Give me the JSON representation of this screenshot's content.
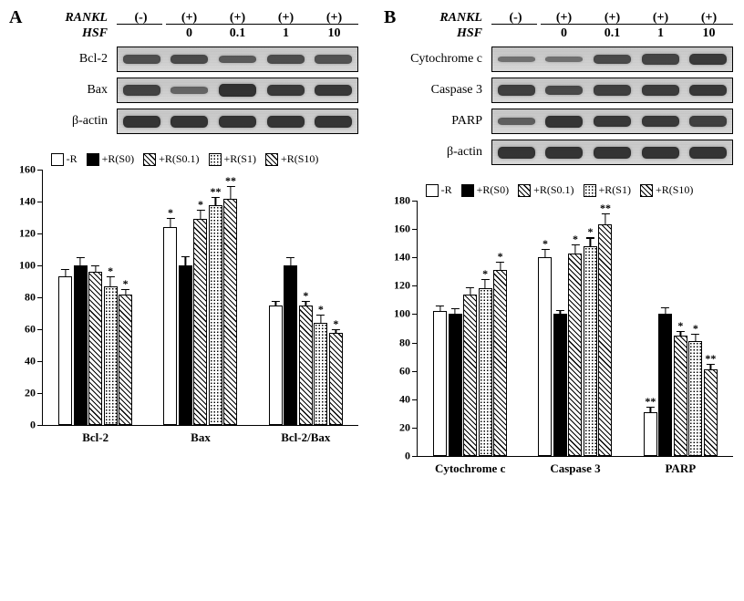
{
  "panelA": {
    "label": "A",
    "header": {
      "rankl_label": "RANKL",
      "hsf_label": "HSF",
      "rankl_values": [
        "(-)",
        "(+)",
        "(+)",
        "(+)",
        "(+)"
      ],
      "hsf_values": [
        "",
        "0",
        "0.1",
        "1",
        "10"
      ]
    },
    "blots": [
      {
        "name": "Bcl-2",
        "intensities": [
          0.5,
          0.55,
          0.4,
          0.52,
          0.48
        ]
      },
      {
        "name": "Bax",
        "intensities": [
          0.62,
          0.3,
          0.78,
          0.7,
          0.72
        ]
      },
      {
        "name": "β-actin",
        "intensities": [
          0.75,
          0.75,
          0.75,
          0.75,
          0.75
        ]
      }
    ],
    "chart": {
      "ymax": 160,
      "ytick_step": 20,
      "legend": [
        {
          "label": "-R",
          "fill": "fill-white"
        },
        {
          "label": "+R(S0)",
          "fill": "fill-black"
        },
        {
          "label": "+R(S0.1)",
          "fill": "fill-diag"
        },
        {
          "label": "+R(S1)",
          "fill": "fill-dots-s"
        },
        {
          "label": "+R(S10)",
          "fill": "fill-diag"
        }
      ],
      "groups": [
        {
          "name": "Bcl-2",
          "bars": [
            {
              "v": 93,
              "e": 5,
              "sig": "",
              "fill": "fill-white"
            },
            {
              "v": 100,
              "e": 5,
              "sig": "",
              "fill": "fill-black"
            },
            {
              "v": 96,
              "e": 4,
              "sig": "",
              "fill": "fill-diag"
            },
            {
              "v": 87,
              "e": 6,
              "sig": "*",
              "fill": "fill-dots-s"
            },
            {
              "v": 82,
              "e": 3,
              "sig": "*",
              "fill": "fill-diag"
            }
          ]
        },
        {
          "name": "Bax",
          "bars": [
            {
              "v": 124,
              "e": 6,
              "sig": "*",
              "fill": "fill-white"
            },
            {
              "v": 100,
              "e": 6,
              "sig": "",
              "fill": "fill-black"
            },
            {
              "v": 129,
              "e": 6,
              "sig": "*",
              "fill": "fill-diag"
            },
            {
              "v": 138,
              "e": 5,
              "sig": "**",
              "fill": "fill-dots-s"
            },
            {
              "v": 142,
              "e": 8,
              "sig": "**",
              "fill": "fill-diag"
            }
          ]
        },
        {
          "name": "Bcl-2/Bax",
          "bars": [
            {
              "v": 75,
              "e": 3,
              "sig": "",
              "fill": "fill-white"
            },
            {
              "v": 100,
              "e": 5,
              "sig": "",
              "fill": "fill-black"
            },
            {
              "v": 75,
              "e": 3,
              "sig": "*",
              "fill": "fill-diag"
            },
            {
              "v": 64,
              "e": 5,
              "sig": "*",
              "fill": "fill-dots-s"
            },
            {
              "v": 58,
              "e": 2,
              "sig": "*",
              "fill": "fill-diag"
            }
          ]
        }
      ]
    }
  },
  "panelB": {
    "label": "B",
    "header": {
      "rankl_label": "RANKL",
      "hsf_label": "HSF",
      "rankl_values": [
        "(-)",
        "(+)",
        "(+)",
        "(+)",
        "(+)"
      ],
      "hsf_values": [
        "",
        "0",
        "0.1",
        "1",
        "10"
      ]
    },
    "blots": [
      {
        "name": "Cytochrome  c",
        "intensities": [
          0.18,
          0.18,
          0.55,
          0.6,
          0.7
        ]
      },
      {
        "name": "Caspase 3",
        "intensities": [
          0.65,
          0.55,
          0.65,
          0.68,
          0.72
        ]
      },
      {
        "name": "PARP",
        "intensities": [
          0.35,
          0.75,
          0.72,
          0.7,
          0.65
        ]
      },
      {
        "name": "β-actin",
        "intensities": [
          0.75,
          0.75,
          0.75,
          0.75,
          0.75
        ]
      }
    ],
    "chart": {
      "ymax": 180,
      "ytick_step": 20,
      "legend": [
        {
          "label": "-R",
          "fill": "fill-white"
        },
        {
          "label": "+R(S0)",
          "fill": "fill-black"
        },
        {
          "label": "+R(S0.1)",
          "fill": "fill-diag"
        },
        {
          "label": "+R(S1)",
          "fill": "fill-dots-s"
        },
        {
          "label": "+R(S10)",
          "fill": "fill-diag"
        }
      ],
      "groups": [
        {
          "name": "Cytochrome c",
          "bars": [
            {
              "v": 102,
              "e": 4,
              "sig": "",
              "fill": "fill-white"
            },
            {
              "v": 100,
              "e": 4,
              "sig": "",
              "fill": "fill-black"
            },
            {
              "v": 114,
              "e": 5,
              "sig": "",
              "fill": "fill-diag"
            },
            {
              "v": 118,
              "e": 7,
              "sig": "*",
              "fill": "fill-dots-s"
            },
            {
              "v": 131,
              "e": 6,
              "sig": "*",
              "fill": "fill-diag"
            }
          ]
        },
        {
          "name": "Caspase 3",
          "bars": [
            {
              "v": 140,
              "e": 6,
              "sig": "*",
              "fill": "fill-white"
            },
            {
              "v": 100,
              "e": 3,
              "sig": "",
              "fill": "fill-black"
            },
            {
              "v": 143,
              "e": 6,
              "sig": "*",
              "fill": "fill-diag"
            },
            {
              "v": 148,
              "e": 6,
              "sig": "*",
              "fill": "fill-dots-s"
            },
            {
              "v": 163,
              "e": 8,
              "sig": "**",
              "fill": "fill-diag"
            }
          ]
        },
        {
          "name": "PARP",
          "bars": [
            {
              "v": 31,
              "e": 4,
              "sig": "**",
              "fill": "fill-white"
            },
            {
              "v": 100,
              "e": 5,
              "sig": "",
              "fill": "fill-black"
            },
            {
              "v": 85,
              "e": 3,
              "sig": "*",
              "fill": "fill-diag"
            },
            {
              "v": 81,
              "e": 5,
              "sig": "*",
              "fill": "fill-dots-s"
            },
            {
              "v": 61,
              "e": 4,
              "sig": "**",
              "fill": "fill-diag"
            }
          ]
        }
      ]
    }
  },
  "colors": {
    "text": "#000000",
    "background": "#ffffff"
  }
}
